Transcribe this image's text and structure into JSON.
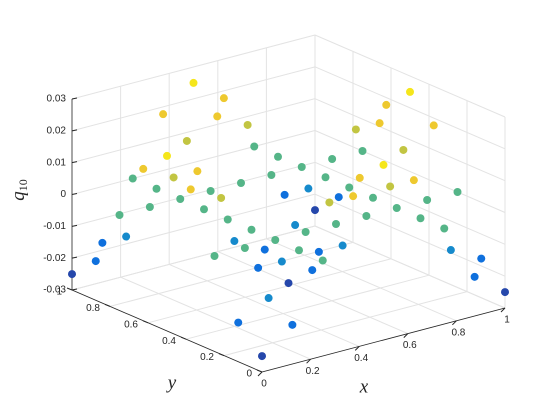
{
  "chart_data": {
    "type": "scatter3d",
    "xlabel": "x",
    "ylabel": "y",
    "zlabel": "q",
    "zlabel_sub": "10",
    "xlim": [
      0,
      1
    ],
    "ylim": [
      0,
      1
    ],
    "zlim": [
      -0.03,
      0.03
    ],
    "xticks": [
      0,
      0.2,
      0.4,
      0.6,
      0.8,
      1
    ],
    "yticks": [
      0,
      0.2,
      0.4,
      0.6,
      0.8,
      1
    ],
    "zticks": [
      -0.03,
      -0.02,
      -0.01,
      0,
      0.01,
      0.02,
      0.03
    ],
    "grid": true,
    "colormap": [
      "#352a87",
      "#0f6fde",
      "#1ea9b6",
      "#8cc059",
      "#f0c92e",
      "#f9fb0e"
    ],
    "x": [
      0,
      0.125,
      0.25,
      0.375,
      0.5,
      0.625,
      0.75,
      0.875,
      1,
      0,
      0.125,
      0.25,
      0.375,
      0.5,
      0.625,
      0.75,
      0.875,
      1,
      0,
      0.125,
      0.25,
      0.375,
      0.5,
      0.625,
      0.75,
      0.875,
      1,
      0,
      0.125,
      0.25,
      0.375,
      0.5,
      0.625,
      0.75,
      0.875,
      1,
      0,
      0.125,
      0.25,
      0.375,
      0.5,
      0.625,
      0.75,
      0.875,
      1,
      0,
      0.125,
      0.25,
      0.375,
      0.5,
      0.625,
      0.75,
      0.875,
      1,
      0,
      0.125,
      0.25,
      0.375,
      0.5,
      0.625,
      0.75,
      0.875,
      1,
      0,
      0.125,
      0.25,
      0.375,
      0.5,
      0.625,
      0.75,
      0.875,
      1,
      0,
      0.125,
      0.25,
      0.375,
      0.5,
      0.625,
      0.75,
      0.875,
      1
    ],
    "y": [
      0,
      0,
      0,
      0,
      0,
      0,
      0,
      0,
      0,
      0.125,
      0.125,
      0.125,
      0.125,
      0.125,
      0.125,
      0.125,
      0.125,
      0.125,
      0.25,
      0.25,
      0.25,
      0.25,
      0.25,
      0.25,
      0.25,
      0.25,
      0.25,
      0.375,
      0.375,
      0.375,
      0.375,
      0.375,
      0.375,
      0.375,
      0.375,
      0.375,
      0.5,
      0.5,
      0.5,
      0.5,
      0.5,
      0.5,
      0.5,
      0.5,
      0.5,
      0.625,
      0.625,
      0.625,
      0.625,
      0.625,
      0.625,
      0.625,
      0.625,
      0.625,
      0.75,
      0.75,
      0.75,
      0.75,
      0.75,
      0.75,
      0.75,
      0.75,
      0.75,
      0.875,
      0.875,
      0.875,
      0.875,
      0.875,
      0.875,
      0.875,
      0.875,
      0.875,
      1,
      1,
      1,
      1,
      1,
      1,
      1,
      1,
      1
    ],
    "z": [
      -0.025,
      -0.0177,
      0,
      0.0177,
      0.025,
      0.0177,
      0,
      -0.0177,
      -0.025,
      -0.0177,
      -0.0125,
      0,
      0.0125,
      0.0177,
      0.0125,
      0,
      -0.0125,
      -0.0177,
      0,
      0,
      0,
      0,
      0,
      0,
      0,
      0,
      0,
      0.0177,
      0.0125,
      0,
      -0.0125,
      -0.0177,
      -0.0125,
      0,
      0.0125,
      0.0177,
      0.025,
      0.0177,
      0,
      -0.0177,
      -0.025,
      -0.0177,
      0,
      0.0177,
      0.025,
      0.0177,
      0.0125,
      0,
      -0.0125,
      -0.0177,
      -0.0125,
      0,
      0.0125,
      0.0177,
      0,
      0,
      0,
      0,
      0,
      0,
      0,
      0,
      0,
      -0.0177,
      -0.0125,
      0,
      0.0125,
      0.0177,
      0.0125,
      0,
      -0.0125,
      -0.0177,
      -0.025,
      -0.0177,
      0,
      0.0177,
      0.025,
      0.0177,
      0,
      -0.0177,
      -0.025
    ]
  }
}
